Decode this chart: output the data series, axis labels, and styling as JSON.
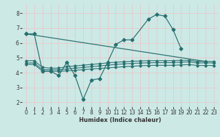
{
  "xlabel": "Humidex (Indice chaleur)",
  "x_ticks": [
    0,
    1,
    2,
    3,
    4,
    5,
    6,
    7,
    8,
    9,
    10,
    11,
    12,
    13,
    14,
    15,
    16,
    17,
    18,
    19,
    20,
    21,
    22,
    23
  ],
  "y_ticks": [
    2,
    3,
    4,
    5,
    6,
    7,
    8
  ],
  "xlim": [
    -0.5,
    23.5
  ],
  "ylim": [
    1.7,
    8.6
  ],
  "bg_color": "#cce9e6",
  "grid_color": "#e8c8c8",
  "line_color": "#2a7070",
  "line1_x": [
    0,
    1,
    2,
    3,
    4,
    5,
    6,
    7,
    8,
    9,
    10,
    11,
    12,
    13,
    15,
    16,
    17,
    18,
    19
  ],
  "line1_y": [
    6.6,
    6.6,
    4.1,
    4.1,
    3.8,
    4.7,
    3.8,
    2.2,
    3.5,
    3.6,
    4.7,
    5.9,
    6.2,
    6.2,
    7.6,
    7.9,
    7.8,
    6.9,
    5.6
  ],
  "line2_x": [
    0,
    22
  ],
  "line2_y": [
    6.6,
    4.75
  ],
  "line3_x": [
    0,
    1,
    2,
    3,
    4,
    5,
    6,
    7,
    8,
    9,
    10,
    11,
    12,
    13,
    14,
    15,
    16,
    17,
    18,
    19,
    20,
    21,
    22,
    23
  ],
  "line3_y": [
    4.8,
    4.8,
    4.35,
    4.3,
    4.3,
    4.4,
    4.45,
    4.5,
    4.55,
    4.6,
    4.65,
    4.7,
    4.73,
    4.76,
    4.78,
    4.8,
    4.8,
    4.8,
    4.8,
    4.82,
    4.82,
    4.75,
    4.75,
    4.75
  ],
  "line4_x": [
    0,
    1,
    2,
    3,
    4,
    5,
    6,
    7,
    8,
    9,
    10,
    11,
    12,
    13,
    14,
    15,
    16,
    17,
    18,
    19,
    20,
    21,
    22,
    23
  ],
  "line4_y": [
    4.65,
    4.65,
    4.2,
    4.2,
    4.18,
    4.25,
    4.3,
    4.35,
    4.4,
    4.45,
    4.5,
    4.55,
    4.59,
    4.62,
    4.64,
    4.66,
    4.67,
    4.67,
    4.67,
    4.7,
    4.72,
    4.65,
    4.65,
    4.65
  ],
  "line5_x": [
    0,
    1,
    2,
    3,
    4,
    5,
    6,
    7,
    8,
    9,
    10,
    11,
    12,
    13,
    14,
    15,
    16,
    17,
    18,
    19,
    20,
    21,
    22,
    23
  ],
  "line5_y": [
    4.55,
    4.55,
    4.1,
    4.1,
    4.08,
    4.12,
    4.16,
    4.2,
    4.24,
    4.28,
    4.32,
    4.36,
    4.4,
    4.43,
    4.46,
    4.48,
    4.49,
    4.49,
    4.49,
    4.52,
    4.54,
    4.48,
    4.48,
    4.48
  ]
}
